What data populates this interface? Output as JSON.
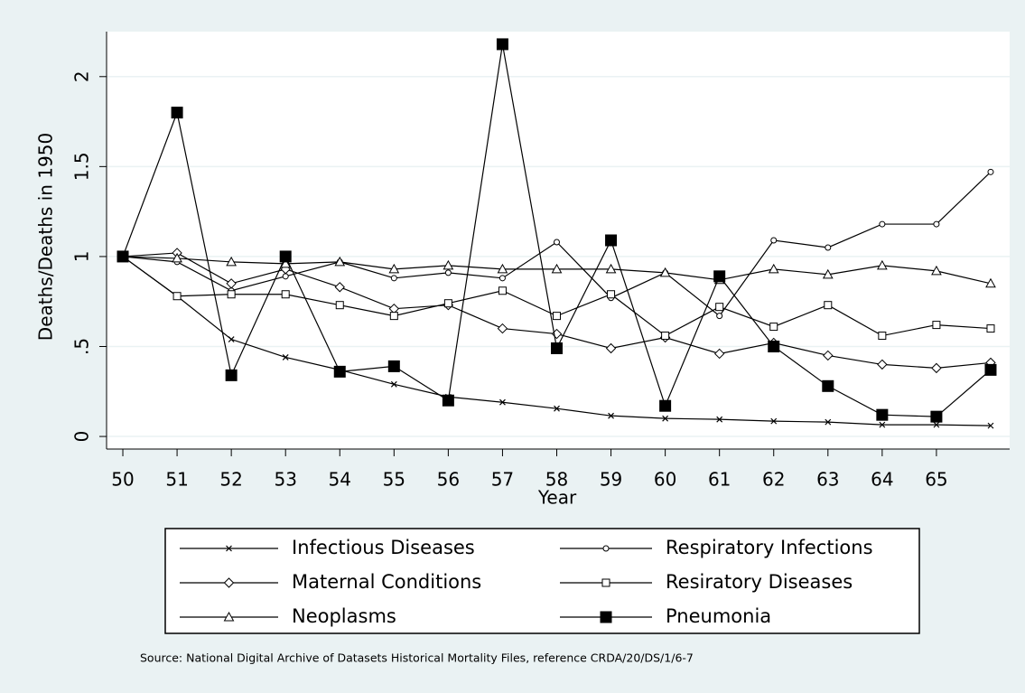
{
  "chart_data": {
    "type": "line",
    "x_label": "Year",
    "y_label": "Deaths/Deaths in 1950",
    "note": "Source: National Digital Archive of Datasets Historical Mortality Files, reference CRDA/20/DS/1/6-7",
    "x": [
      50,
      51,
      52,
      53,
      54,
      55,
      56,
      57,
      58,
      59,
      60,
      61,
      62,
      63,
      64,
      65,
      66
    ],
    "xlim": [
      49.7,
      66.35
    ],
    "xticks": [
      50,
      51,
      52,
      53,
      54,
      55,
      56,
      57,
      58,
      59,
      60,
      61,
      62,
      63,
      64,
      65
    ],
    "ylim": [
      -0.07,
      2.25
    ],
    "yticks": [
      0,
      {
        "value": 0.5,
        "label": ".5"
      },
      1,
      1.5,
      2
    ],
    "grid": true,
    "series": [
      {
        "name": "Infectious Diseases",
        "color": "#000000",
        "marker": "x",
        "values": [
          1.0,
          0.78,
          0.54,
          0.44,
          0.37,
          0.29,
          0.22,
          0.19,
          0.155,
          0.115,
          0.1,
          0.095,
          0.085,
          0.08,
          0.065,
          0.065,
          0.06
        ]
      },
      {
        "name": "Respiratory Infections",
        "color": "#000000",
        "marker": "circle",
        "values": [
          1.0,
          0.97,
          0.81,
          0.89,
          0.97,
          0.88,
          0.91,
          0.88,
          1.08,
          0.77,
          0.91,
          0.67,
          1.09,
          1.05,
          1.18,
          1.18,
          1.47
        ]
      },
      {
        "name": "Maternal Conditions",
        "color": "#000000",
        "marker": "diamond",
        "values": [
          1.0,
          1.02,
          0.85,
          0.93,
          0.83,
          0.71,
          0.73,
          0.6,
          0.57,
          0.49,
          0.55,
          0.46,
          0.52,
          0.45,
          0.4,
          0.38,
          0.41
        ]
      },
      {
        "name": "Resiratory Diseases",
        "color": "#000000",
        "marker": "square",
        "values": [
          1.0,
          0.78,
          0.79,
          0.79,
          0.73,
          0.67,
          0.74,
          0.81,
          0.67,
          0.79,
          0.56,
          0.72,
          0.61,
          0.73,
          0.56,
          0.62,
          0.6
        ]
      },
      {
        "name": "Neoplasms",
        "color": "#000000",
        "marker": "triangle",
        "values": [
          1.0,
          0.99,
          0.97,
          0.96,
          0.97,
          0.93,
          0.95,
          0.93,
          0.93,
          0.93,
          0.91,
          0.87,
          0.93,
          0.9,
          0.95,
          0.92,
          0.85
        ]
      },
      {
        "name": "Pneumonia",
        "color": "#000000",
        "marker": "filled-square",
        "values": [
          1.0,
          1.8,
          0.34,
          1.0,
          0.36,
          0.39,
          0.2,
          2.18,
          0.49,
          1.09,
          0.17,
          0.89,
          0.5,
          0.28,
          0.12,
          0.11,
          0.37
        ]
      }
    ]
  }
}
